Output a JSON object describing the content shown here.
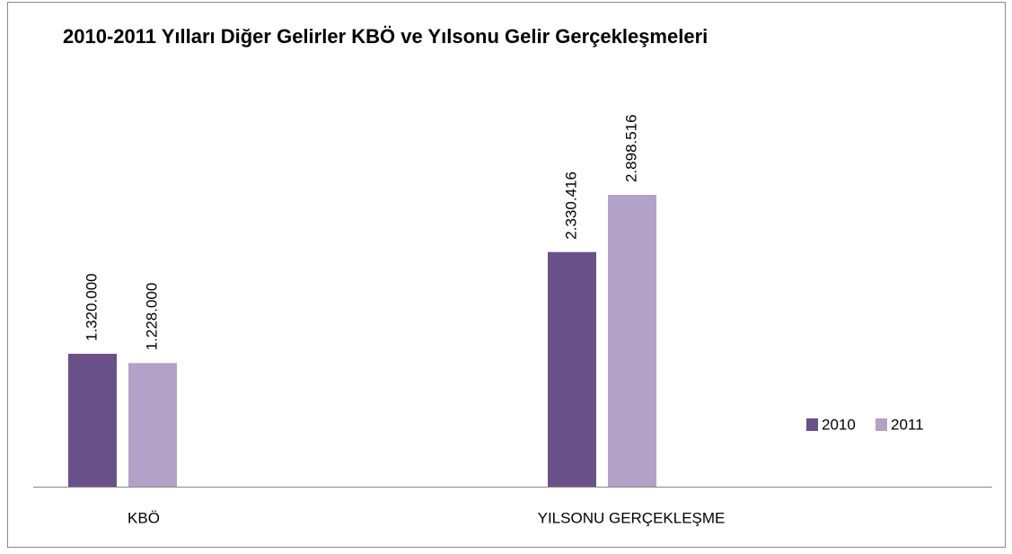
{
  "chart_data": {
    "type": "bar",
    "title": "2010-2011 Yılları Diğer Gelirler KBÖ ve Yılsonu Gelir Gerçekleşmeleri",
    "categories": [
      "KBÖ",
      "YILSONU GERÇEKLEŞME"
    ],
    "series": [
      {
        "name": "2010",
        "color": "#6a5088",
        "values": [
          1320000,
          2330416
        ],
        "value_labels": [
          "1.320.000",
          "2.330.416"
        ]
      },
      {
        "name": "2011",
        "color": "#b3a2c7",
        "values": [
          1228000,
          2898516
        ],
        "value_labels": [
          "1.228.000",
          "2.898.516"
        ]
      }
    ],
    "legend": "right"
  }
}
